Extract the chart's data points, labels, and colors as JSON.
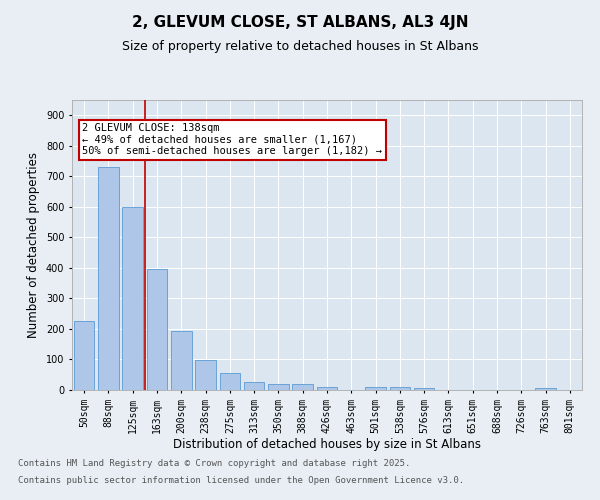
{
  "title": "2, GLEVUM CLOSE, ST ALBANS, AL3 4JN",
  "subtitle": "Size of property relative to detached houses in St Albans",
  "xlabel": "Distribution of detached houses by size in St Albans",
  "ylabel": "Number of detached properties",
  "categories": [
    "50sqm",
    "88sqm",
    "125sqm",
    "163sqm",
    "200sqm",
    "238sqm",
    "275sqm",
    "313sqm",
    "350sqm",
    "388sqm",
    "426sqm",
    "463sqm",
    "501sqm",
    "538sqm",
    "576sqm",
    "613sqm",
    "651sqm",
    "688sqm",
    "726sqm",
    "763sqm",
    "801sqm"
  ],
  "values": [
    225,
    730,
    600,
    395,
    192,
    98,
    57,
    27,
    20,
    20,
    10,
    0,
    11,
    11,
    5,
    0,
    0,
    0,
    0,
    7,
    0
  ],
  "bar_color": "#aec6e8",
  "bar_edge_color": "#5b9bd5",
  "vline_x": 2.5,
  "vline_color": "#c00000",
  "annotation_text": "2 GLEVUM CLOSE: 138sqm\n← 49% of detached houses are smaller (1,167)\n50% of semi-detached houses are larger (1,182) →",
  "annotation_box_color": "#ffffff",
  "annotation_edge_color": "#c00000",
  "ylim": [
    0,
    950
  ],
  "yticks": [
    0,
    100,
    200,
    300,
    400,
    500,
    600,
    700,
    800,
    900
  ],
  "bg_color": "#e8eef4",
  "plot_bg_color": "#dce6f0",
  "grid_color": "#ffffff",
  "footer_line1": "Contains HM Land Registry data © Crown copyright and database right 2025.",
  "footer_line2": "Contains public sector information licensed under the Open Government Licence v3.0.",
  "title_fontsize": 11,
  "subtitle_fontsize": 9,
  "tick_fontsize": 7,
  "ylabel_fontsize": 8.5,
  "xlabel_fontsize": 8.5,
  "annotation_fontsize": 7.5,
  "footer_fontsize": 6.5
}
